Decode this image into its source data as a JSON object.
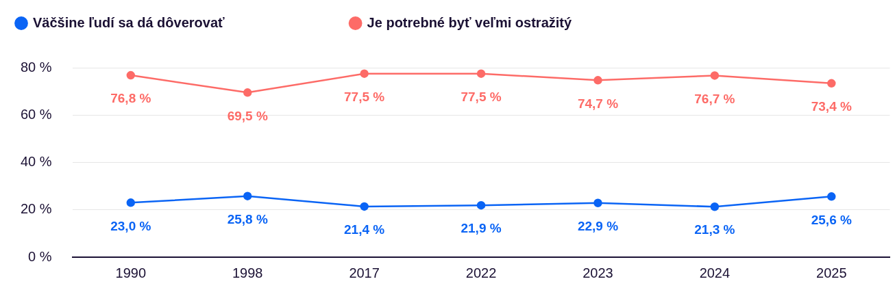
{
  "chart_data": {
    "type": "line",
    "categories": [
      "1990",
      "1998",
      "2017",
      "2022",
      "2023",
      "2024",
      "2025"
    ],
    "series": [
      {
        "name": "Väčšine ľudí sa dá dôverovať",
        "color": "#0a64f5",
        "values": [
          23.0,
          25.8,
          21.4,
          21.9,
          22.9,
          21.3,
          25.6
        ],
        "value_labels": [
          "23,0 %",
          "25,8 %",
          "21,4 %",
          "21,9 %",
          "22,9 %",
          "21,3 %",
          "25,6 %"
        ]
      },
      {
        "name": "Je potrebné byť veľmi ostražitý",
        "color": "#fd6b67",
        "values": [
          76.8,
          69.5,
          77.5,
          77.5,
          74.7,
          76.7,
          73.4
        ],
        "value_labels": [
          "76,8 %",
          "69,5 %",
          "77,5 %",
          "77,5 %",
          "74,7 %",
          "76,7 %",
          "73,4 %"
        ]
      }
    ],
    "ylim": [
      0,
      80
    ],
    "yticks": [
      {
        "value": 0,
        "label": "0 %"
      },
      {
        "value": 20,
        "label": "20 %"
      },
      {
        "value": 40,
        "label": "40 %"
      },
      {
        "value": 60,
        "label": "60 %"
      },
      {
        "value": 80,
        "label": "80 %"
      }
    ],
    "grid": "y",
    "legend": "top left",
    "marker": "circle",
    "line_style": "solid"
  }
}
